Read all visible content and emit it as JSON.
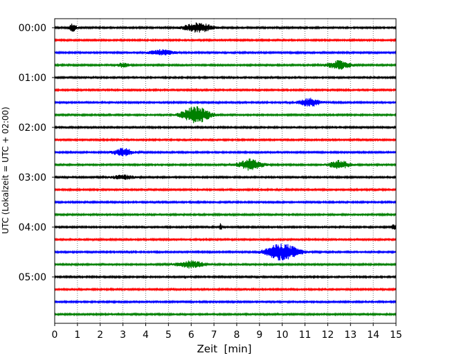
{
  "chart_data": {
    "type": "line",
    "title": "",
    "xlabel": "Zeit  [min]",
    "ylabel": "UTC (Lokalzeit = UTC + 02:00)",
    "xlim": [
      0,
      15
    ],
    "x_ticks": [
      "0",
      "1",
      "2",
      "3",
      "4",
      "5",
      "6",
      "7",
      "8",
      "9",
      "10",
      "11",
      "12",
      "13",
      "14",
      "15"
    ],
    "y_ticks": [
      "00:00",
      "01:00",
      "02:00",
      "03:00",
      "04:00",
      "05:00"
    ],
    "grid": "vertical dotted lines at each minute",
    "trace_interval_min": 15,
    "trace_count": 24,
    "colors": [
      "#000000",
      "#ff0000",
      "#0000ff",
      "#008000"
    ],
    "traces": [
      {
        "start": "00:00",
        "color": "#000000",
        "events": [
          {
            "t": 0.8,
            "amp": 6,
            "width": 0.15
          },
          {
            "t": 6.3,
            "amp": 7,
            "width": 0.6
          }
        ]
      },
      {
        "start": "00:15",
        "color": "#ff0000",
        "events": []
      },
      {
        "start": "00:30",
        "color": "#0000ff",
        "events": [
          {
            "t": 4.7,
            "amp": 4,
            "width": 0.5
          }
        ]
      },
      {
        "start": "00:45",
        "color": "#008000",
        "events": [
          {
            "t": 3.0,
            "amp": 3,
            "width": 0.25
          },
          {
            "t": 12.5,
            "amp": 6,
            "width": 0.5
          }
        ]
      },
      {
        "start": "01:00",
        "color": "#000000",
        "events": []
      },
      {
        "start": "01:15",
        "color": "#ff0000",
        "events": []
      },
      {
        "start": "01:30",
        "color": "#0000ff",
        "events": [
          {
            "t": 11.2,
            "amp": 6,
            "width": 0.45
          }
        ]
      },
      {
        "start": "01:45",
        "color": "#008000",
        "events": [
          {
            "t": 6.2,
            "amp": 12,
            "width": 0.6
          }
        ]
      },
      {
        "start": "02:00",
        "color": "#000000",
        "events": []
      },
      {
        "start": "02:15",
        "color": "#ff0000",
        "events": []
      },
      {
        "start": "02:30",
        "color": "#0000ff",
        "events": [
          {
            "t": 3.0,
            "amp": 6,
            "width": 0.4
          }
        ]
      },
      {
        "start": "02:45",
        "color": "#008000",
        "events": [
          {
            "t": 8.6,
            "amp": 8,
            "width": 0.5
          },
          {
            "t": 12.5,
            "amp": 6,
            "width": 0.45
          }
        ]
      },
      {
        "start": "03:00",
        "color": "#000000",
        "events": [
          {
            "t": 3.0,
            "amp": 3,
            "width": 0.5
          }
        ]
      },
      {
        "start": "03:15",
        "color": "#ff0000",
        "events": []
      },
      {
        "start": "03:30",
        "color": "#0000ff",
        "events": []
      },
      {
        "start": "03:45",
        "color": "#008000",
        "events": []
      },
      {
        "start": "04:00",
        "color": "#000000",
        "events": [
          {
            "t": 7.3,
            "amp": 7,
            "width": 0.04
          },
          {
            "t": 14.9,
            "amp": 4,
            "width": 0.1
          }
        ]
      },
      {
        "start": "04:15",
        "color": "#ff0000",
        "events": []
      },
      {
        "start": "04:30",
        "color": "#0000ff",
        "events": [
          {
            "t": 10.0,
            "amp": 12,
            "width": 0.7
          }
        ]
      },
      {
        "start": "04:45",
        "color": "#008000",
        "events": [
          {
            "t": 6.0,
            "amp": 5,
            "width": 0.6
          }
        ]
      },
      {
        "start": "05:00",
        "color": "#000000",
        "events": []
      },
      {
        "start": "05:15",
        "color": "#ff0000",
        "events": []
      },
      {
        "start": "05:30",
        "color": "#0000ff",
        "events": []
      },
      {
        "start": "05:45",
        "color": "#008000",
        "events": []
      }
    ]
  }
}
